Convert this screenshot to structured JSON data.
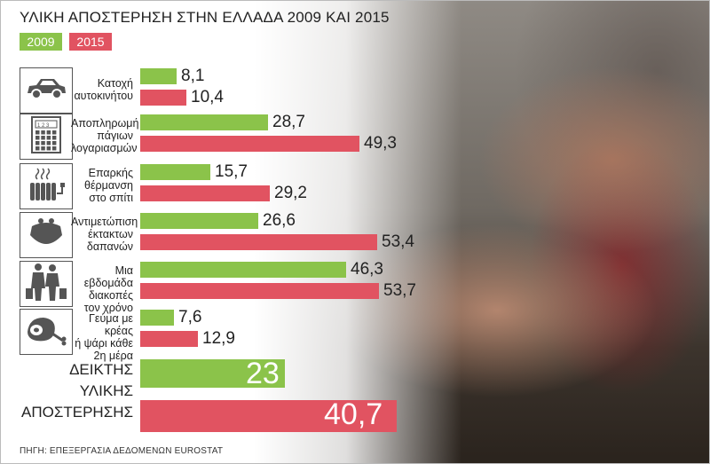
{
  "title": "ΥΛΙΚΗ ΑΠΟΣΤΕΡΗΣΗ ΣΤΗΝ ΕΛΛΑΔΑ 2009 ΚΑΙ 2015",
  "legend": {
    "y2009": "2009",
    "y2015": "2015"
  },
  "colors": {
    "y2009": "#8bc34a",
    "y2015": "#e15361"
  },
  "source": "ΠΗΓΗ: ΕΠΕΞΕΡΓΑΣΙΑ ΔΕΔΟΜΕΝΩΝ EUROSTAT",
  "categories": [
    {
      "label": [
        "Κατοχή",
        "αυτοκινήτου"
      ],
      "v2009": "8,1",
      "v2015": "10,4",
      "icon": "car-icon"
    },
    {
      "label": [
        "Αποπληρωμή",
        "πάγιων",
        "λογαριασμών"
      ],
      "v2009": "28,7",
      "v2015": "49,3",
      "icon": "calculator-icon"
    },
    {
      "label": [
        "Επαρκής",
        "θέρμανση",
        "στο σπίτι"
      ],
      "v2009": "15,7",
      "v2015": "29,2",
      "icon": "radiator-icon"
    },
    {
      "label": [
        "Αντιμετώπιση",
        "έκτακτων",
        "δαπανών"
      ],
      "v2009": "26,6",
      "v2015": "53,4",
      "icon": "purse-icon"
    },
    {
      "label": [
        "Μια εβδομάδα",
        "διακοπές",
        "τον χρόνο"
      ],
      "v2009": "46,3",
      "v2015": "53,7",
      "icon": "travelers-icon"
    },
    {
      "label": [
        "Γεύμα με κρέας",
        "ή ψάρι κάθε",
        "2η μέρα"
      ],
      "v2009": "7,6",
      "v2015": "12,9",
      "icon": "ham-icon"
    }
  ],
  "index": {
    "label": [
      "ΔΕΙΚΤΗΣ",
      "ΥΛΙΚΗΣ",
      "ΑΠΟΣΤΕΡΗΣΗΣ"
    ],
    "v2009": "23",
    "v2015": "40,7"
  },
  "chart_data": {
    "type": "bar",
    "title": "ΥΛΙΚΗ ΑΠΟΣΤΕΡΗΣΗ ΣΤΗΝ ΕΛΛΑΔΑ 2009 ΚΑΙ 2015",
    "categories": [
      "Κατοχή αυτοκινήτου",
      "Αποπληρωμή πάγιων λογαριασμών",
      "Επαρκής θέρμανση στο σπίτι",
      "Αντιμετώπιση έκτακτων δαπανών",
      "Μια εβδομάδα διακοπές τον χρόνο",
      "Γεύμα με κρέας ή ψάρι κάθε 2η μέρα",
      "ΔΕΙΚΤΗΣ ΥΛΙΚΗΣ ΑΠΟΣΤΕΡΗΣΗΣ"
    ],
    "series": [
      {
        "name": "2009",
        "values": [
          8.1,
          28.7,
          15.7,
          26.6,
          46.3,
          7.6,
          23
        ]
      },
      {
        "name": "2015",
        "values": [
          10.4,
          49.3,
          29.2,
          53.4,
          53.7,
          12.9,
          40.7
        ]
      }
    ],
    "orientation": "horizontal",
    "legend": "top-left"
  }
}
